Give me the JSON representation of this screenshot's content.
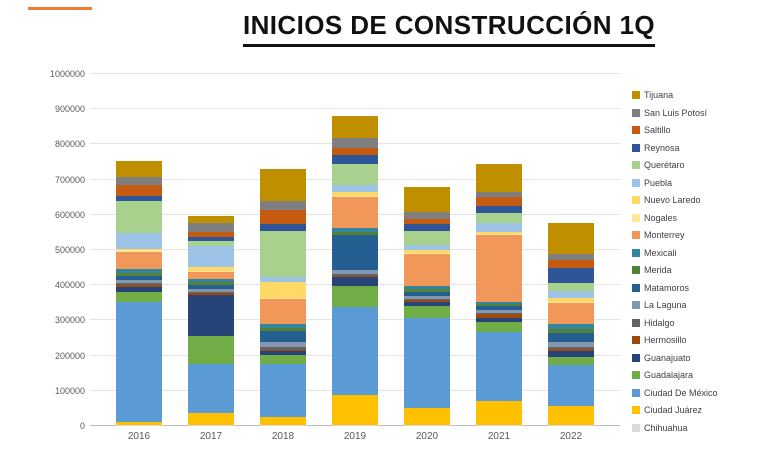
{
  "title": "INICIOS DE CONSTRUCCIÓN 1Q",
  "accent_color": "#ED7D31",
  "chart_data": {
    "type": "bar",
    "stacked": true,
    "title": "INICIOS DE CONSTRUCCIÓN 1Q",
    "xlabel": "",
    "ylabel": "",
    "ylim": [
      0,
      1000000
    ],
    "ytick_step": 100000,
    "grid": true,
    "legend_position": "right",
    "legend_order": "top-is-last-series",
    "categories": [
      "2016",
      "2017",
      "2018",
      "2019",
      "2020",
      "2021",
      "2022"
    ],
    "series": [
      {
        "name": "Chihuahua",
        "color": "#D9D9D9",
        "values": [
          3000,
          2000,
          2000,
          2000,
          2000,
          2000,
          2000
        ]
      },
      {
        "name": "Ciudad Juárez",
        "color": "#FFC000",
        "values": [
          8000,
          35000,
          25000,
          85000,
          50000,
          70000,
          55000
        ]
      },
      {
        "name": "Ciudad De México",
        "color": "#5B9BD5",
        "values": [
          340000,
          140000,
          150000,
          250000,
          255000,
          195000,
          115000
        ]
      },
      {
        "name": "Guadalajara",
        "color": "#70AD47",
        "values": [
          30000,
          80000,
          25000,
          60000,
          35000,
          30000,
          25000
        ]
      },
      {
        "name": "Guanajuato",
        "color": "#264478",
        "values": [
          15000,
          115000,
          10000,
          25000,
          10000,
          10000,
          15000
        ]
      },
      {
        "name": "Hermosillo",
        "color": "#9E480E",
        "values": [
          5000,
          5000,
          5000,
          5000,
          5000,
          10000,
          8000
        ]
      },
      {
        "name": "Hidalgo",
        "color": "#636363",
        "values": [
          5000,
          5000,
          8000,
          5000,
          5000,
          5000,
          5000
        ]
      },
      {
        "name": "La Laguna",
        "color": "#8497B0",
        "values": [
          10000,
          8000,
          15000,
          10000,
          8000,
          8000,
          15000
        ]
      },
      {
        "name": "Matamoros",
        "color": "#255E91",
        "values": [
          10000,
          10000,
          30000,
          100000,
          10000,
          10000,
          25000
        ]
      },
      {
        "name": "Merida",
        "color": "#538135",
        "values": [
          10000,
          8000,
          10000,
          10000,
          8000,
          8000,
          10000
        ]
      },
      {
        "name": "Mexicali",
        "color": "#31859C",
        "values": [
          10000,
          10000,
          10000,
          10000,
          10000,
          5000,
          15000
        ]
      },
      {
        "name": "Monterrey",
        "color": "#F1975A",
        "values": [
          50000,
          20000,
          70000,
          90000,
          90000,
          190000,
          60000
        ]
      },
      {
        "name": "Nogales",
        "color": "#FFE699",
        "values": [
          3000,
          3000,
          5000,
          3000,
          3000,
          3000,
          3000
        ]
      },
      {
        "name": "Nuevo Laredo",
        "color": "#FFD966",
        "values": [
          5000,
          10000,
          45000,
          10000,
          8000,
          5000,
          10000
        ]
      },
      {
        "name": "Puebla",
        "color": "#9DC3E6",
        "values": [
          45000,
          60000,
          15000,
          20000,
          15000,
          25000,
          20000
        ]
      },
      {
        "name": "Querétaro",
        "color": "#A9D18E",
        "values": [
          90000,
          15000,
          130000,
          60000,
          40000,
          30000,
          25000
        ]
      },
      {
        "name": "Reynosa",
        "color": "#2E5597",
        "values": [
          15000,
          10000,
          20000,
          25000,
          20000,
          20000,
          40000
        ]
      },
      {
        "name": "Saltillo",
        "color": "#C55A11",
        "values": [
          30000,
          15000,
          40000,
          20000,
          15000,
          25000,
          25000
        ]
      },
      {
        "name": "San Luis Potosí",
        "color": "#7F7F7F",
        "values": [
          25000,
          25000,
          25000,
          30000,
          20000,
          15000,
          15000
        ]
      },
      {
        "name": "Tijuana",
        "color": "#BF8F00",
        "values": [
          45000,
          20000,
          90000,
          60000,
          70000,
          80000,
          90000
        ]
      }
    ]
  }
}
